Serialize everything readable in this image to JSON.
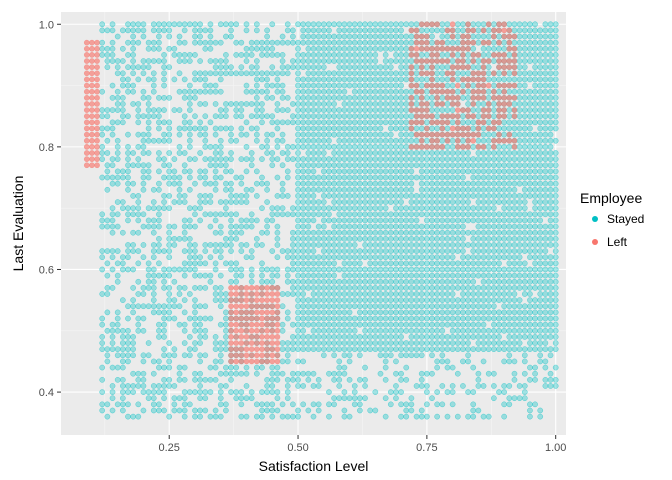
{
  "chart_data": {
    "type": "scatter",
    "title": "",
    "xlabel": "Satisfaction Level",
    "ylabel": "Last Evaluation",
    "xlim": [
      0.04,
      1.02
    ],
    "ylim": [
      0.33,
      1.02
    ],
    "x_ticks": [
      0.25,
      0.5,
      0.75,
      1.0
    ],
    "x_tick_labels": [
      "0.25",
      "0.50",
      "0.75",
      "1.00"
    ],
    "y_ticks": [
      0.4,
      0.6,
      0.8,
      1.0
    ],
    "y_tick_labels": [
      "0.4",
      "0.6",
      "0.8",
      "1.0"
    ],
    "grid": true,
    "legend": {
      "title": "Employee",
      "placement": "right",
      "entries": [
        "Stayed",
        "Left"
      ]
    },
    "colors": {
      "stayed": "#00BFC4",
      "left": "#F8766D",
      "panel": "#EBEBEB",
      "grid_major": "#FFFFFF",
      "grid_minor": "#F5F5F5"
    },
    "series": [
      {
        "name": "Stayed",
        "regions": [
          {
            "x": [
              0.12,
              1.0
            ],
            "y": [
              0.36,
              1.0
            ],
            "density": 0.35
          },
          {
            "x": [
              0.5,
              1.0
            ],
            "y": [
              0.47,
              1.0
            ],
            "density": 0.95
          },
          {
            "x": [
              0.12,
              0.5
            ],
            "y": [
              0.36,
              1.0
            ],
            "density": 0.25
          }
        ]
      },
      {
        "name": "Left",
        "regions": [
          {
            "x": [
              0.09,
              0.11
            ],
            "y": [
              0.77,
              0.97
            ],
            "density": 1.0
          },
          {
            "x": [
              0.37,
              0.46
            ],
            "y": [
              0.45,
              0.57
            ],
            "density": 1.0
          },
          {
            "x": [
              0.72,
              0.92
            ],
            "y": [
              0.8,
              1.0
            ],
            "density": 0.6
          }
        ]
      }
    ]
  }
}
